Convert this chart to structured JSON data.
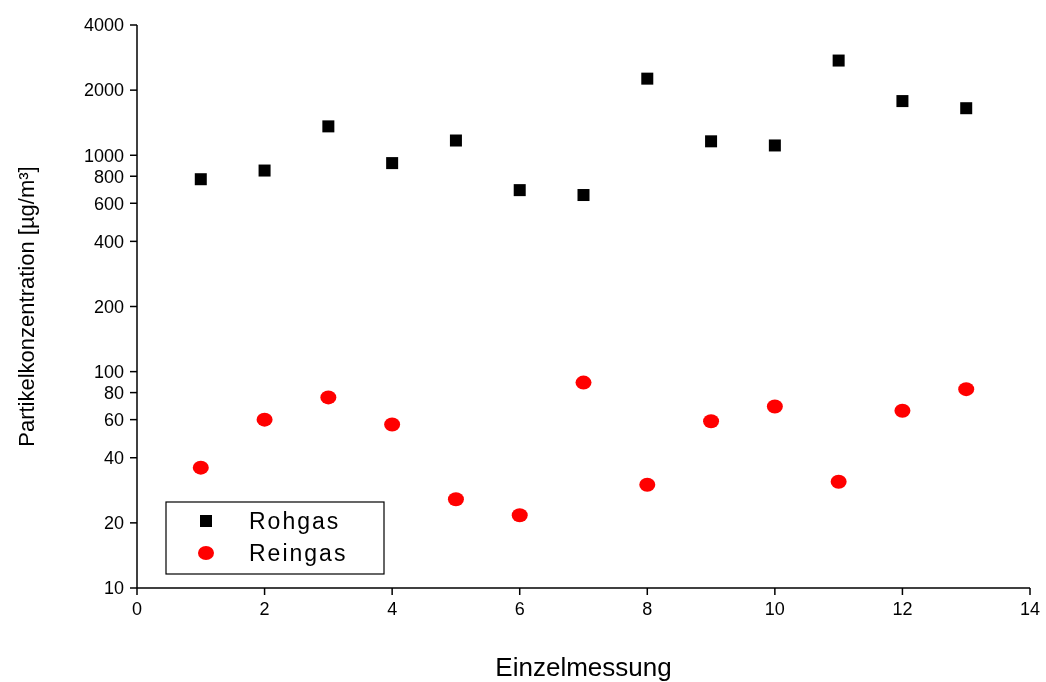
{
  "chart_data": {
    "type": "scatter",
    "xlabel": "Einzelmessung",
    "ylabel": "Partikelkonzentration [µg/m³]",
    "log": "y",
    "x": [
      1,
      2,
      3,
      4,
      5,
      6,
      7,
      8,
      9,
      10,
      11,
      12,
      13
    ],
    "xlim": [
      0,
      14
    ],
    "xticks": [
      0,
      2,
      4,
      6,
      8,
      10,
      12,
      14
    ],
    "ylim": [
      10,
      4000
    ],
    "yticks": [
      10,
      20,
      40,
      60,
      80,
      100,
      200,
      400,
      600,
      800,
      1000,
      2000,
      4000
    ],
    "grid": false,
    "legend": "bottom left",
    "series": [
      {
        "name": "Rohgas",
        "color": "#000000",
        "marker": "square",
        "values": [
          775,
          850,
          1360,
          920,
          1170,
          690,
          655,
          2260,
          1160,
          1110,
          2740,
          1780,
          1650
        ]
      },
      {
        "name": "Reingas",
        "color": "#ff0000",
        "marker": "circle",
        "values": [
          36,
          60,
          76,
          57,
          25.7,
          21.7,
          89,
          30,
          59,
          69,
          31,
          66,
          83
        ]
      }
    ]
  }
}
